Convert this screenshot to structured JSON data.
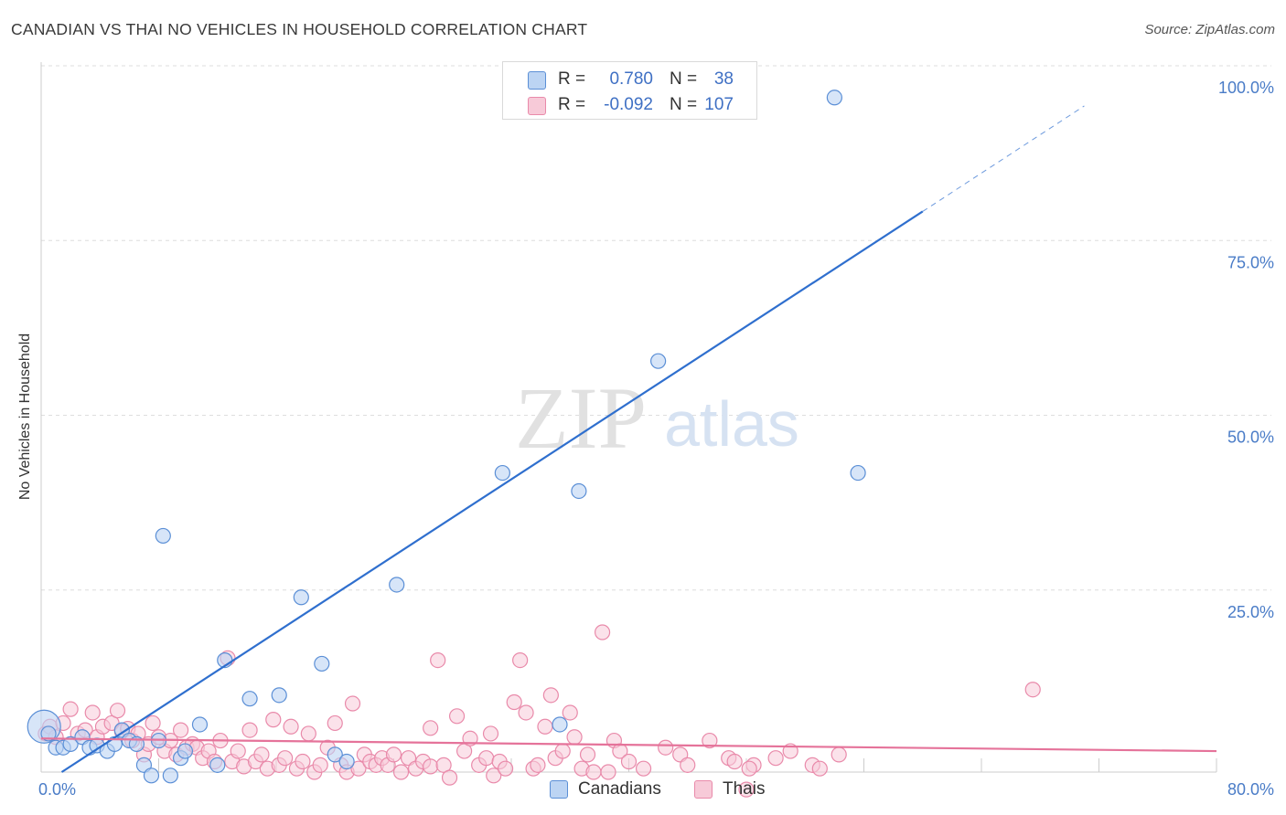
{
  "chart_data": {
    "type": "scatter",
    "title": "CANADIAN VS THAI NO VEHICLES IN HOUSEHOLD CORRELATION CHART",
    "source": "Source: ZipAtlas.com",
    "xlabel": "",
    "ylabel": "No Vehicles in Household",
    "xlim": [
      0,
      80
    ],
    "ylim": [
      0,
      100
    ],
    "x_tick_labels": [
      "0.0%",
      "80.0%"
    ],
    "y_ticks": [
      25,
      50,
      75,
      100
    ],
    "y_tick_labels": [
      "25.0%",
      "50.0%",
      "75.0%",
      "100.0%"
    ],
    "watermark": {
      "zip": "ZIP",
      "atlas": "atlas"
    },
    "legend_stats": [
      {
        "r_label": "R =",
        "r_value": "0.780",
        "n_label": "N =",
        "n_value": "38"
      },
      {
        "r_label": "R =",
        "r_value": "-0.092",
        "n_label": "N =",
        "n_value": "107"
      }
    ],
    "series": [
      {
        "name": "Canadians",
        "color": "#5b8fd6",
        "fill": "#bcd4f3",
        "trend": {
          "x0": 1.4,
          "y0": 0,
          "x1": 60,
          "y1": 80.2,
          "dash_to_x": 71,
          "dash_to_y": 95.3,
          "color": "#2f6fce"
        },
        "points": [
          [
            0.2,
            6.5,
            18
          ],
          [
            0.5,
            5.5,
            10
          ],
          [
            1.0,
            3.5,
            10
          ],
          [
            1.5,
            3.5,
            10
          ],
          [
            2.0,
            4.0,
            10
          ],
          [
            2.8,
            5.0,
            10
          ],
          [
            3.3,
            3.5,
            10
          ],
          [
            3.8,
            3.8,
            10
          ],
          [
            4.5,
            3.0,
            10
          ],
          [
            5.0,
            4.0,
            10
          ],
          [
            5.5,
            6.0,
            10
          ],
          [
            6.0,
            4.5,
            10
          ],
          [
            6.5,
            4.0,
            10
          ],
          [
            7.0,
            1.0,
            10
          ],
          [
            7.5,
            -0.5,
            10
          ],
          [
            8.0,
            4.5,
            10
          ],
          [
            8.3,
            33.8,
            10
          ],
          [
            8.8,
            -0.5,
            10
          ],
          [
            9.5,
            2.0,
            10
          ],
          [
            9.8,
            3.0,
            10
          ],
          [
            10.8,
            6.8,
            10
          ],
          [
            12.0,
            1.0,
            10
          ],
          [
            12.5,
            16.0,
            10
          ],
          [
            14.2,
            10.5,
            10
          ],
          [
            16.2,
            11.0,
            10
          ],
          [
            17.7,
            25.0,
            10
          ],
          [
            19.1,
            15.5,
            10
          ],
          [
            20.0,
            2.5,
            10
          ],
          [
            20.8,
            1.5,
            10
          ],
          [
            24.2,
            26.8,
            10
          ],
          [
            31.4,
            42.8,
            10
          ],
          [
            32.2,
            96.5,
            10
          ],
          [
            35.3,
            6.8,
            10
          ],
          [
            36.6,
            40.2,
            10
          ],
          [
            42.0,
            58.8,
            10
          ],
          [
            54.0,
            96.5,
            10
          ],
          [
            55.6,
            42.8,
            10
          ]
        ]
      },
      {
        "name": "Thais",
        "color": "#e98aaa",
        "fill": "#f7cad8",
        "trend": {
          "x0": 0,
          "y0": 4.8,
          "x1": 80,
          "y1": 3.0,
          "color": "#e5739a"
        },
        "points": [
          [
            0.3,
            5.5,
            10
          ],
          [
            0.6,
            6.5,
            10
          ],
          [
            1.0,
            5.0,
            10
          ],
          [
            1.5,
            7.0,
            10
          ],
          [
            2.0,
            9.0,
            10
          ],
          [
            2.5,
            5.5,
            10
          ],
          [
            3.0,
            6.0,
            10
          ],
          [
            3.5,
            8.5,
            10
          ],
          [
            3.8,
            5.0,
            10
          ],
          [
            4.2,
            6.5,
            10
          ],
          [
            4.8,
            7.0,
            10
          ],
          [
            5.2,
            8.8,
            10
          ],
          [
            5.5,
            5.8,
            10
          ],
          [
            5.9,
            6.2,
            10
          ],
          [
            6.2,
            4.5,
            10
          ],
          [
            6.6,
            5.5,
            10
          ],
          [
            7.0,
            2.5,
            10
          ],
          [
            7.3,
            4.0,
            10
          ],
          [
            7.6,
            7.0,
            10
          ],
          [
            8.0,
            5.0,
            10
          ],
          [
            8.4,
            3.0,
            10
          ],
          [
            8.8,
            4.5,
            10
          ],
          [
            9.2,
            2.5,
            10
          ],
          [
            9.5,
            6.0,
            10
          ],
          [
            9.9,
            3.5,
            10
          ],
          [
            10.3,
            4.0,
            10
          ],
          [
            10.6,
            3.5,
            10
          ],
          [
            11.0,
            2.0,
            10
          ],
          [
            11.4,
            3.0,
            10
          ],
          [
            11.8,
            1.5,
            10
          ],
          [
            12.2,
            4.5,
            10
          ],
          [
            12.7,
            16.3,
            10
          ],
          [
            13.0,
            1.5,
            10
          ],
          [
            13.4,
            3.0,
            10
          ],
          [
            13.8,
            0.8,
            10
          ],
          [
            14.2,
            6.0,
            10
          ],
          [
            14.6,
            1.5,
            10
          ],
          [
            15.0,
            2.5,
            10
          ],
          [
            15.4,
            0.5,
            10
          ],
          [
            15.8,
            7.5,
            10
          ],
          [
            16.2,
            1.0,
            10
          ],
          [
            16.6,
            2.0,
            10
          ],
          [
            17.0,
            6.5,
            10
          ],
          [
            17.4,
            0.5,
            10
          ],
          [
            17.8,
            1.5,
            10
          ],
          [
            18.2,
            5.5,
            10
          ],
          [
            18.6,
            0.0,
            10
          ],
          [
            19.0,
            1.0,
            10
          ],
          [
            19.5,
            3.5,
            10
          ],
          [
            20.0,
            7.0,
            10
          ],
          [
            20.4,
            1.0,
            10
          ],
          [
            20.8,
            0.0,
            10
          ],
          [
            21.2,
            9.8,
            10
          ],
          [
            21.6,
            0.5,
            10
          ],
          [
            22.0,
            2.5,
            10
          ],
          [
            22.4,
            1.5,
            10
          ],
          [
            22.8,
            1.0,
            10
          ],
          [
            23.2,
            2.0,
            10
          ],
          [
            23.6,
            1.0,
            10
          ],
          [
            24.0,
            2.5,
            10
          ],
          [
            24.5,
            0.0,
            10
          ],
          [
            25.0,
            2.0,
            10
          ],
          [
            25.5,
            0.5,
            10
          ],
          [
            26.0,
            1.5,
            10
          ],
          [
            26.5,
            0.8,
            10
          ],
          [
            27.0,
            16.0,
            10
          ],
          [
            27.4,
            1.0,
            10
          ],
          [
            27.8,
            -0.8,
            10
          ],
          [
            28.3,
            8.0,
            10
          ],
          [
            28.8,
            3.0,
            10
          ],
          [
            29.2,
            4.8,
            10
          ],
          [
            29.8,
            1.0,
            10
          ],
          [
            30.3,
            2.0,
            10
          ],
          [
            30.8,
            -0.5,
            10
          ],
          [
            31.2,
            1.5,
            10
          ],
          [
            31.6,
            0.5,
            10
          ],
          [
            32.2,
            10.0,
            10
          ],
          [
            32.6,
            16.0,
            10
          ],
          [
            33.0,
            8.5,
            10
          ],
          [
            33.5,
            0.5,
            10
          ],
          [
            33.8,
            1.0,
            10
          ],
          [
            34.3,
            6.5,
            10
          ],
          [
            34.7,
            11.0,
            10
          ],
          [
            35.0,
            2.0,
            10
          ],
          [
            35.5,
            3.0,
            10
          ],
          [
            36.0,
            8.5,
            10
          ],
          [
            36.3,
            5.0,
            10
          ],
          [
            36.8,
            0.5,
            10
          ],
          [
            37.2,
            2.5,
            10
          ],
          [
            37.6,
            0.0,
            10
          ],
          [
            38.2,
            20.0,
            10
          ],
          [
            38.6,
            0.0,
            10
          ],
          [
            39.0,
            4.5,
            10
          ],
          [
            39.4,
            3.0,
            10
          ],
          [
            40.0,
            1.5,
            10
          ],
          [
            41.0,
            0.5,
            10
          ],
          [
            42.5,
            3.5,
            10
          ],
          [
            43.5,
            2.5,
            10
          ],
          [
            44.0,
            1.0,
            10
          ],
          [
            45.5,
            4.5,
            10
          ],
          [
            46.8,
            2.0,
            10
          ],
          [
            47.2,
            1.5,
            10
          ],
          [
            48.5,
            1.0,
            10
          ],
          [
            50.0,
            2.0,
            10
          ],
          [
            51.0,
            3.0,
            10
          ],
          [
            52.5,
            1.0,
            10
          ],
          [
            53.0,
            0.5,
            10
          ]
        ]
      }
    ]
  },
  "extra_thai_points": [
    [
      48.2,
      0.5
    ],
    [
      48.0,
      -2.5
    ],
    [
      54.3,
      2.5
    ],
    [
      67.5,
      11.8
    ],
    [
      30.6,
      5.5
    ],
    [
      26.5,
      6.3
    ]
  ],
  "legend_bottom": [
    "Canadians",
    "Thais"
  ]
}
